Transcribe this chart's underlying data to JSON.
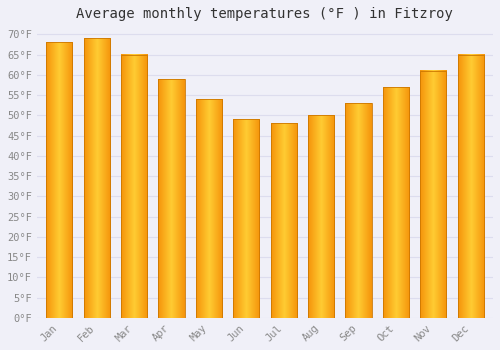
{
  "months": [
    "Jan",
    "Feb",
    "Mar",
    "Apr",
    "May",
    "Jun",
    "Jul",
    "Aug",
    "Sep",
    "Oct",
    "Nov",
    "Dec"
  ],
  "values": [
    68,
    69,
    65,
    59,
    54,
    49,
    48,
    50,
    53,
    57,
    61,
    65
  ],
  "title": "Average monthly temperatures (°F ) in Fitzroy",
  "ylabel_ticks": [
    0,
    5,
    10,
    15,
    20,
    25,
    30,
    35,
    40,
    45,
    50,
    55,
    60,
    65,
    70
  ],
  "ylim": [
    0,
    72
  ],
  "bar_color_center": "#FFCC33",
  "bar_color_edge": "#F5930A",
  "bar_border_color": "#CC7700",
  "background_color": "#F0F0F8",
  "plot_bg_color": "#F0F0F8",
  "grid_color": "#DDDDEE",
  "title_fontsize": 10,
  "tick_fontsize": 7.5,
  "tick_color": "#888888",
  "font_family": "monospace",
  "bar_width": 0.7
}
